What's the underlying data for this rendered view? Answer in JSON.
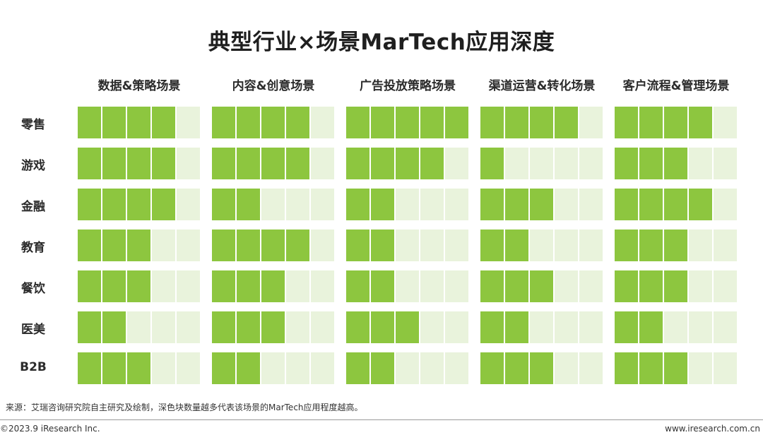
{
  "title": "典型行业×场景MarTech应用深度",
  "chart_data": {
    "type": "heatmap",
    "title": "典型行业×场景MarTech应用深度",
    "columns": [
      "数据&策略场景",
      "内容&创意场景",
      "广告投放策略场景",
      "渠道运营&转化场景",
      "客户流程&管理场景"
    ],
    "rows": [
      "零售",
      "游戏",
      "金融",
      "教育",
      "餐饮",
      "医美",
      "B2B"
    ],
    "max_blocks": 5,
    "values": [
      [
        4,
        4,
        5,
        4,
        4
      ],
      [
        4,
        4,
        4,
        1,
        3
      ],
      [
        4,
        2,
        2,
        3,
        4
      ],
      [
        3,
        4,
        2,
        2,
        3
      ],
      [
        3,
        3,
        2,
        3,
        3
      ],
      [
        2,
        3,
        3,
        2,
        2
      ],
      [
        3,
        2,
        2,
        3,
        3
      ]
    ],
    "colors": {
      "filled": "#8dc63f",
      "empty": "#e9f3dc"
    }
  },
  "footer": {
    "source": "来源：艾瑞咨询研究院自主研究及绘制，深色块数量越多代表该场景的MarTech应用程度越高。",
    "copyright": "©2023.9 iResearch Inc.",
    "website": "www.iresearch.com.cn"
  }
}
